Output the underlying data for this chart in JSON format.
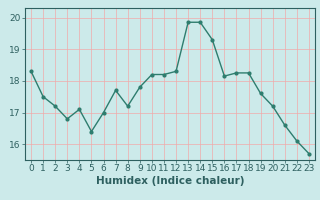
{
  "x": [
    0,
    1,
    2,
    3,
    4,
    5,
    6,
    7,
    8,
    9,
    10,
    11,
    12,
    13,
    14,
    15,
    16,
    17,
    18,
    19,
    20,
    21,
    22,
    23
  ],
  "y": [
    18.3,
    17.5,
    17.2,
    16.8,
    17.1,
    16.4,
    17.0,
    17.7,
    17.2,
    17.8,
    18.2,
    18.2,
    18.3,
    19.85,
    19.85,
    19.3,
    18.15,
    18.25,
    18.25,
    17.6,
    17.2,
    16.6,
    16.1,
    15.7
  ],
  "line_color": "#2e7d6e",
  "marker": "o",
  "marker_size": 2.0,
  "bg_color": "#cceaea",
  "grid_color": "#f0aaaa",
  "xlabel": "Humidex (Indice chaleur)",
  "ylim": [
    15.5,
    20.3
  ],
  "xlim": [
    -0.5,
    23.5
  ],
  "yticks": [
    16,
    17,
    18,
    19,
    20
  ],
  "xticks": [
    0,
    1,
    2,
    3,
    4,
    5,
    6,
    7,
    8,
    9,
    10,
    11,
    12,
    13,
    14,
    15,
    16,
    17,
    18,
    19,
    20,
    21,
    22,
    23
  ],
  "tick_fontsize": 6.5,
  "xlabel_fontsize": 7.5,
  "line_width": 1.0
}
